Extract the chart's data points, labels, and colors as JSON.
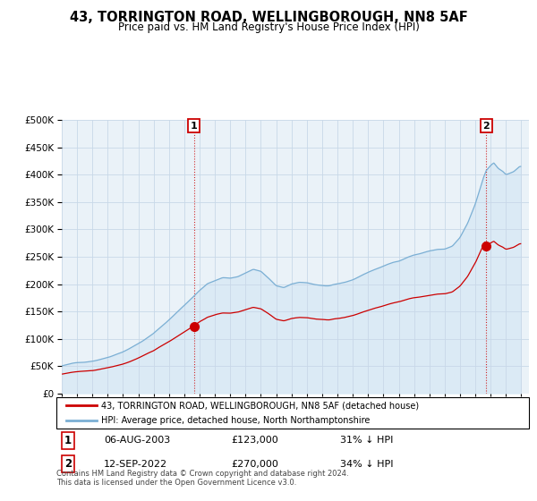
{
  "title": "43, TORRINGTON ROAD, WELLINGBOROUGH, NN8 5AF",
  "subtitle": "Price paid vs. HM Land Registry's House Price Index (HPI)",
  "legend_line1": "43, TORRINGTON ROAD, WELLINGBOROUGH, NN8 5AF (detached house)",
  "legend_line2": "HPI: Average price, detached house, North Northamptonshire",
  "annotation1_date": "06-AUG-2003",
  "annotation1_price": 123000,
  "annotation1_hpi": "31% ↓ HPI",
  "annotation2_date": "12-SEP-2022",
  "annotation2_price": 270000,
  "annotation2_hpi": "34% ↓ HPI",
  "footnote": "Contains HM Land Registry data © Crown copyright and database right 2024.\nThis data is licensed under the Open Government Licence v3.0.",
  "hpi_color": "#7bafd4",
  "hpi_fill_color": "#d6e8f5",
  "price_color": "#cc0000",
  "vline_color": "#cc0000",
  "background_color": "#f0f4f8",
  "plot_bg_color": "#eaf2f8",
  "grid_color": "#c8d8e8",
  "ylim_max": 500000,
  "ylim_min": 0,
  "sale1_year": 2003.622,
  "sale2_year": 2022.706
}
